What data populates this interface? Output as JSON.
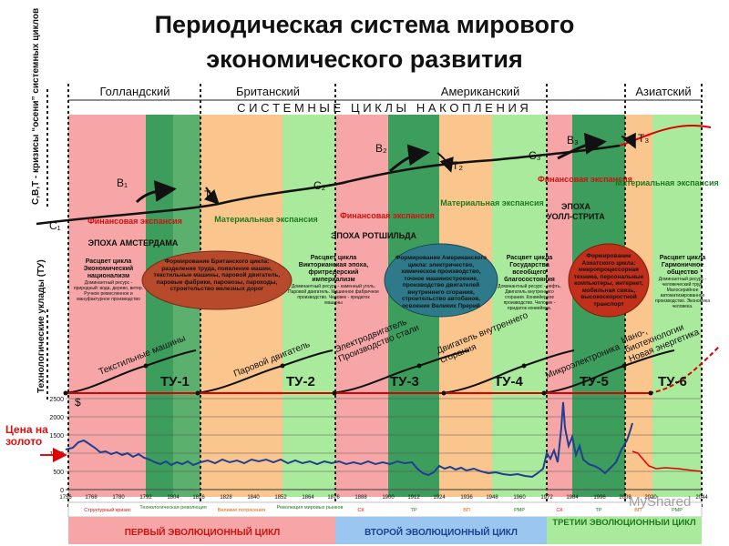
{
  "title_line1": "Периодическая система мирового",
  "title_line2": "экономического развития",
  "side_labels": {
    "crises": "С,В,Т - кризисы “осени” системных циклов",
    "tech": "Технологические уклады (ТУ)"
  },
  "hegemonies": [
    {
      "label": "Голландский"
    },
    {
      "label": "Британский"
    },
    {
      "label": "Американский"
    },
    {
      "label": "Азиатский"
    }
  ],
  "systemic_cycles_label": "С И С Т Е М Н Ы Е   Ц И К Л Ы   Н А К О П Л Е Н И Я",
  "points": {
    "C1": "С₁",
    "B1": "В₁",
    "T1": "Т₁",
    "C2": "С₂",
    "B2": "В₂",
    "T2": "Т₂",
    "C3": "С₃",
    "B3": "В₃",
    "T3": "Т₃"
  },
  "phase_labels": {
    "fin1": "Финансовая экспансия",
    "mat1": "Материальная экспансия",
    "fin2": "Финансовая экспансия",
    "mat2": "Материальная экспансия",
    "fin3": "Финансовая экспансия",
    "mat3": "Материальная экспансия"
  },
  "epochs": {
    "amsterdam": "ЭПОХА АМСТЕРДАМА",
    "rothschild": "ЭПОХА РОТШИЛЬДА",
    "wallstreet_1": "ЭПОХА",
    "wallstreet_2": "УОЛЛ-СТРИТА"
  },
  "cycle_blocks": [
    {
      "title": "Расцвет цикла Экономический национализм",
      "text": "Доминантный ресурс - природный: вода, дерево, ветер. Ручное ремесленное и мануфактурное производство"
    },
    {
      "title": "Расцвет цикла Викторианская эпоха, фритредерский империализм",
      "text": "Доминантный ресурс - каменный уголь. Паровой двигатель. Машинное фабричное производство. Человек - придаток машины"
    },
    {
      "title": "Расцвет цикла Государства всеобщего благосостояния",
      "text": "Доминантный ресурс - нефть. Двигатель внутреннего сгорания. Конвейерное производство. Человек - придаток конвейера."
    },
    {
      "title": "Расцвет цикла Гармоничное общество",
      "text": "Доминантный ресурс - человеческий труд. Малосерийное автоматизированное производство. Экономика человека."
    }
  ],
  "formation_ovals": [
    {
      "text": "Формирование Британского цикла: разделение труда, появление машин, текстильные машины, паровой двигатель, паровые фабрики, паровозы, пароходы, строительство железных дорог"
    },
    {
      "text": "Формирование Американского цикла: электричество, химическое производство, точное машиностроение, производство двигателей внутреннего сгорания, строительство автобанов, освоение Великих Прерий"
    },
    {
      "text": "Формирование Азиатского цикла: микропроцессорная техника, персональные компьютеры, интернет, мобильная связь, высокоскоростной транспорт"
    }
  ],
  "tech_waves": [
    {
      "label": "ТУ-1",
      "tech": "Текстильные машины"
    },
    {
      "label": "ТУ-2",
      "tech": "Паровой двигатель"
    },
    {
      "label": "ТУ-3",
      "tech": "Электродвигатель Производство стали"
    },
    {
      "label": "ТУ-4",
      "tech": "Двигатель внутреннего сгорания"
    },
    {
      "label": "ТУ-5",
      "tech": "Микроэлектроника"
    },
    {
      "label": "ТУ-6",
      "tech": "Нано-, биотехнологии Новая энергетика"
    }
  ],
  "gold_chart": {
    "label": "Цена на золото",
    "currency": "$",
    "y_ticks": [
      "2500",
      "2000",
      "1500",
      "1000",
      "500",
      "0"
    ],
    "x_ticks": [
      "1756",
      "1768",
      "1780",
      "1792",
      "1804",
      "1816",
      "1828",
      "1840",
      "1852",
      "1864",
      "1876",
      "1888",
      "1900",
      "1912",
      "1924",
      "1936",
      "1948",
      "1960",
      "1972",
      "1984",
      "1996",
      "2008",
      "2020",
      "2044"
    ]
  },
  "bottom_crises": [
    "Структурный кризис",
    "Технологическая революция",
    "Великие потрясения",
    "Революция мировых рынков",
    "СК",
    "ТР",
    "ВП",
    "РМР",
    "СК",
    "ТР",
    "ВП",
    "РМР"
  ],
  "evolution_cycles": [
    {
      "label": "ПЕРВЫЙ ЭВОЛЮЦИОННЫЙ ЦИКЛ"
    },
    {
      "label": "ВТОРОЙ ЭВОЛЮЦИОННЫЙ ЦИКЛ"
    },
    {
      "label": "ТРЕТИЙ ЭВОЛЮЦИОННЫЙ ЦИКЛ"
    }
  ],
  "watermark": "MyShared",
  "colors": {
    "pink": "#f6a6a6",
    "orange": "#fbc58e",
    "lightgreen": "#a9ea9c",
    "darkgreen": "#3d9d5c",
    "red": "#e02020",
    "blue": "#1f3f8f",
    "gray": "#bbbbbb"
  }
}
